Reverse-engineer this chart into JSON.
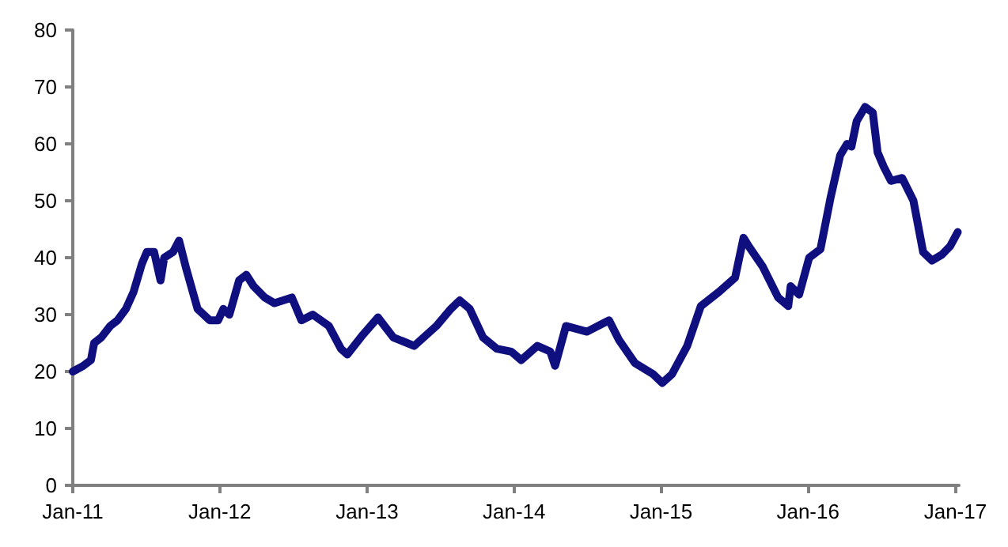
{
  "chart_data": {
    "type": "line",
    "line_style": "solid",
    "marker": "none",
    "grid": false,
    "xlim": [
      "2011-01-01",
      "2017-01-10"
    ],
    "xticks": [
      {
        "value": "2011-01-01",
        "label": "Jan-11"
      },
      {
        "value": "2012-01-01",
        "label": "Jan-12"
      },
      {
        "value": "2013-01-01",
        "label": "Jan-13"
      },
      {
        "value": "2014-01-01",
        "label": "Jan-14"
      },
      {
        "value": "2015-01-01",
        "label": "Jan-15"
      },
      {
        "value": "2016-01-01",
        "label": "Jan-16"
      },
      {
        "value": "2017-01-01",
        "label": "Jan-17"
      }
    ],
    "ylim": [
      0,
      80
    ],
    "yticks": [
      0,
      10,
      20,
      30,
      40,
      50,
      60,
      70,
      80
    ],
    "series": [
      {
        "color": "#0f0f80",
        "x": [
          "2011-01-01",
          "2011-01-27",
          "2011-02-15",
          "2011-02-23",
          "2011-03-13",
          "2011-04-04",
          "2011-04-22",
          "2011-05-13",
          "2011-06-01",
          "2011-06-22",
          "2011-07-04",
          "2011-07-22",
          "2011-08-07",
          "2011-08-16",
          "2011-09-07",
          "2011-09-22",
          "2011-10-10",
          "2011-11-07",
          "2011-12-07",
          "2011-12-28",
          "2012-01-10",
          "2012-01-25",
          "2012-02-18",
          "2012-03-07",
          "2012-03-25",
          "2012-04-22",
          "2012-05-16",
          "2012-06-28",
          "2012-07-22",
          "2012-08-19",
          "2012-09-28",
          "2012-10-28",
          "2012-11-13",
          "2012-12-22",
          "2013-01-28",
          "2013-03-07",
          "2013-04-28",
          "2013-06-22",
          "2013-07-28",
          "2013-08-19",
          "2013-09-13",
          "2013-10-16",
          "2013-11-19",
          "2013-12-25",
          "2014-01-19",
          "2014-02-28",
          "2014-04-01",
          "2014-04-13",
          "2014-05-10",
          "2014-07-01",
          "2014-08-25",
          "2014-09-19",
          "2014-10-28",
          "2014-12-13",
          "2015-01-04",
          "2015-01-28",
          "2015-03-07",
          "2015-04-10",
          "2015-05-25",
          "2015-07-04",
          "2015-07-25",
          "2015-08-07",
          "2015-09-10",
          "2015-10-19",
          "2015-11-13",
          "2015-11-19",
          "2015-12-10",
          "2016-01-04",
          "2016-02-01",
          "2016-02-26",
          "2016-03-21",
          "2016-04-07",
          "2016-04-18",
          "2016-05-01",
          "2016-05-22",
          "2016-06-10",
          "2016-06-22",
          "2016-07-07",
          "2016-07-25",
          "2016-08-22",
          "2016-09-19",
          "2016-10-13",
          "2016-11-04",
          "2016-11-28",
          "2016-12-19",
          "2017-01-07"
        ],
        "values": [
          20,
          21,
          22,
          25,
          26,
          28,
          29,
          31,
          34,
          39,
          41,
          41,
          36,
          40,
          41,
          43,
          38,
          31,
          29,
          29,
          31,
          30,
          36,
          37,
          35,
          33,
          32,
          33,
          29,
          30,
          28,
          24,
          23,
          26.5,
          29.5,
          26,
          24.5,
          28,
          31,
          32.5,
          31,
          26,
          24,
          23.5,
          22,
          24.5,
          23.5,
          21,
          28,
          27,
          29,
          25.5,
          21.5,
          19.5,
          18,
          19.5,
          24.5,
          31.5,
          34,
          36.5,
          43.5,
          42,
          38.5,
          33,
          31.5,
          35,
          33.5,
          40,
          41.5,
          50.5,
          58,
          60,
          59.5,
          64,
          66.5,
          65.5,
          58.5,
          56,
          53.5,
          54,
          50,
          41,
          39.5,
          40.5,
          42,
          44.5
        ]
      }
    ]
  }
}
